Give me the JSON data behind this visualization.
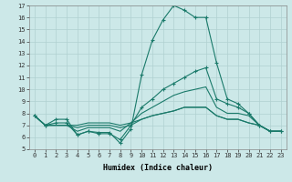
{
  "bg_color": "#cce8e8",
  "grid_color": "#b0d0d0",
  "line_color": "#1a7a6a",
  "xlabel": "Humidex (Indice chaleur)",
  "xlim": [
    -0.5,
    23.5
  ],
  "ylim": [
    5,
    17
  ],
  "xticks": [
    0,
    1,
    2,
    3,
    4,
    5,
    6,
    7,
    8,
    9,
    10,
    11,
    12,
    13,
    14,
    15,
    16,
    17,
    18,
    19,
    20,
    21,
    22,
    23
  ],
  "yticks": [
    5,
    6,
    7,
    8,
    9,
    10,
    11,
    12,
    13,
    14,
    15,
    16,
    17
  ],
  "lines": [
    {
      "x": [
        0,
        1,
        2,
        3,
        4,
        5,
        6,
        7,
        8,
        9,
        10,
        11,
        12,
        13,
        14,
        15,
        16,
        17,
        18,
        19,
        20,
        21,
        22,
        23
      ],
      "y": [
        7.8,
        7.0,
        7.5,
        7.5,
        6.2,
        6.5,
        6.4,
        6.4,
        5.5,
        6.7,
        11.2,
        14.1,
        15.8,
        17.0,
        16.6,
        16.0,
        16.0,
        12.2,
        9.2,
        8.8,
        8.0,
        7.0,
        6.5,
        6.5
      ],
      "marker": true
    },
    {
      "x": [
        0,
        1,
        2,
        3,
        4,
        5,
        6,
        7,
        8,
        9,
        10,
        11,
        12,
        13,
        14,
        15,
        16,
        17,
        18,
        19,
        20,
        21,
        22,
        23
      ],
      "y": [
        7.8,
        7.0,
        7.2,
        7.2,
        6.2,
        6.5,
        6.3,
        6.3,
        5.8,
        7.0,
        8.5,
        9.2,
        10.0,
        10.5,
        11.0,
        11.5,
        11.8,
        9.2,
        8.8,
        8.5,
        8.0,
        7.0,
        6.5,
        6.5
      ],
      "marker": true
    },
    {
      "x": [
        0,
        1,
        2,
        3,
        4,
        5,
        6,
        7,
        8,
        9,
        10,
        11,
        12,
        13,
        14,
        15,
        16,
        17,
        18,
        19,
        20,
        21,
        22,
        23
      ],
      "y": [
        7.8,
        7.0,
        7.0,
        7.0,
        6.5,
        6.8,
        6.8,
        6.8,
        6.5,
        7.2,
        8.0,
        8.5,
        9.0,
        9.5,
        9.8,
        10.0,
        10.2,
        8.5,
        8.0,
        8.0,
        7.8,
        7.0,
        6.5,
        6.5
      ],
      "marker": false
    },
    {
      "x": [
        0,
        1,
        2,
        3,
        4,
        5,
        6,
        7,
        8,
        9,
        10,
        11,
        12,
        13,
        14,
        15,
        16,
        17,
        18,
        19,
        20,
        21,
        22,
        23
      ],
      "y": [
        7.8,
        7.0,
        7.0,
        7.0,
        6.8,
        7.0,
        7.0,
        7.0,
        6.8,
        7.0,
        7.5,
        7.8,
        8.0,
        8.2,
        8.5,
        8.5,
        8.5,
        7.8,
        7.5,
        7.5,
        7.2,
        7.0,
        6.5,
        6.5
      ],
      "marker": false
    },
    {
      "x": [
        0,
        1,
        2,
        3,
        4,
        5,
        6,
        7,
        8,
        9,
        10,
        11,
        12,
        13,
        14,
        15,
        16,
        17,
        18,
        19,
        20,
        21,
        22,
        23
      ],
      "y": [
        7.8,
        7.0,
        7.0,
        7.0,
        7.0,
        7.2,
        7.2,
        7.2,
        7.0,
        7.2,
        7.5,
        7.8,
        8.0,
        8.2,
        8.5,
        8.5,
        8.5,
        7.8,
        7.5,
        7.5,
        7.2,
        7.0,
        6.5,
        6.5
      ],
      "marker": false
    }
  ],
  "axis_fontsize": 6,
  "tick_fontsize": 5
}
